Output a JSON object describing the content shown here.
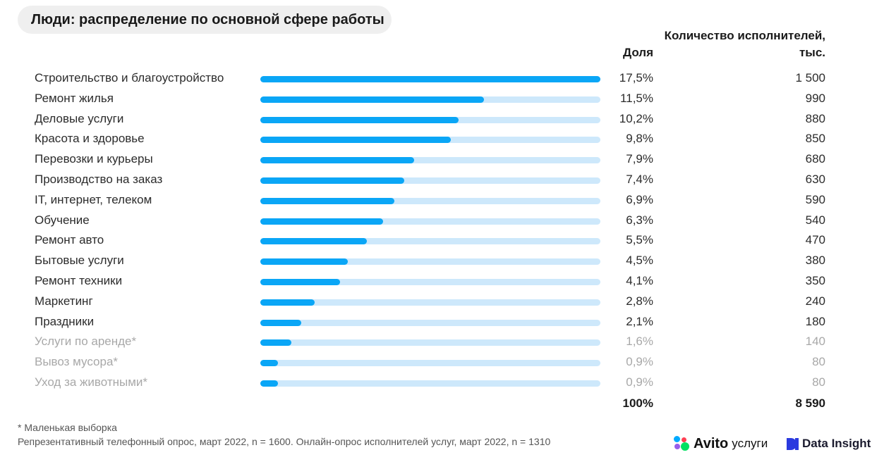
{
  "title": "Люди: распределение по основной сфере работы",
  "headers": {
    "share": "Доля",
    "count": "Количество исполнителей, тыс."
  },
  "chart_data": {
    "type": "bar",
    "orientation": "horizontal",
    "title": "Люди: распределение по основной сфере работы",
    "categories": [
      "Строительство и благоустройство",
      "Ремонт жилья",
      "Деловые услуги",
      "Красота и здоровье",
      "Перевозки и курьеры",
      "Производство на заказ",
      "IT, интернет, телеком",
      "Обучение",
      "Ремонт авто",
      "Бытовые услуги",
      "Ремонт техники",
      "Маркетинг",
      "Праздники",
      "Услуги по аренде*",
      "Вывоз мусора*",
      "Уход за животными*"
    ],
    "share_labels": [
      "17,5%",
      "11,5%",
      "10,2%",
      "9,8%",
      "7,9%",
      "7,4%",
      "6,9%",
      "6,3%",
      "5,5%",
      "4,5%",
      "4,1%",
      "2,8%",
      "2,1%",
      "1,6%",
      "0,9%",
      "0,9%"
    ],
    "values": [
      17.5,
      11.5,
      10.2,
      9.8,
      7.9,
      7.4,
      6.9,
      6.3,
      5.5,
      4.5,
      4.1,
      2.8,
      2.1,
      1.6,
      0.9,
      0.9
    ],
    "count_labels": [
      "1 500",
      "990",
      "880",
      "850",
      "680",
      "630",
      "590",
      "540",
      "470",
      "380",
      "350",
      "240",
      "180",
      "140",
      "80",
      "80"
    ],
    "muted": [
      false,
      false,
      false,
      false,
      false,
      false,
      false,
      false,
      false,
      false,
      false,
      false,
      false,
      true,
      true,
      true
    ],
    "xlim": [
      0,
      17.5
    ],
    "total_share": "100%",
    "total_count": "8 590"
  },
  "colors": {
    "bar": "#0aa6f6",
    "track": "#cde8fb",
    "muted_text": "#a8a8a8"
  },
  "footnote": "*  Маленькая выборка",
  "source": "Репрезентативный телефонный опрос, март 2022, n = 1600. Онлайн-опрос исполнителей услуг, март 2022, n = 1310",
  "logos": {
    "avito_word": "Avito",
    "avito_sub": "услуги",
    "avito_icon": "avito-dots-icon",
    "datainsight_word": "Data Insight",
    "datainsight_icon": "datainsight-di-icon"
  }
}
